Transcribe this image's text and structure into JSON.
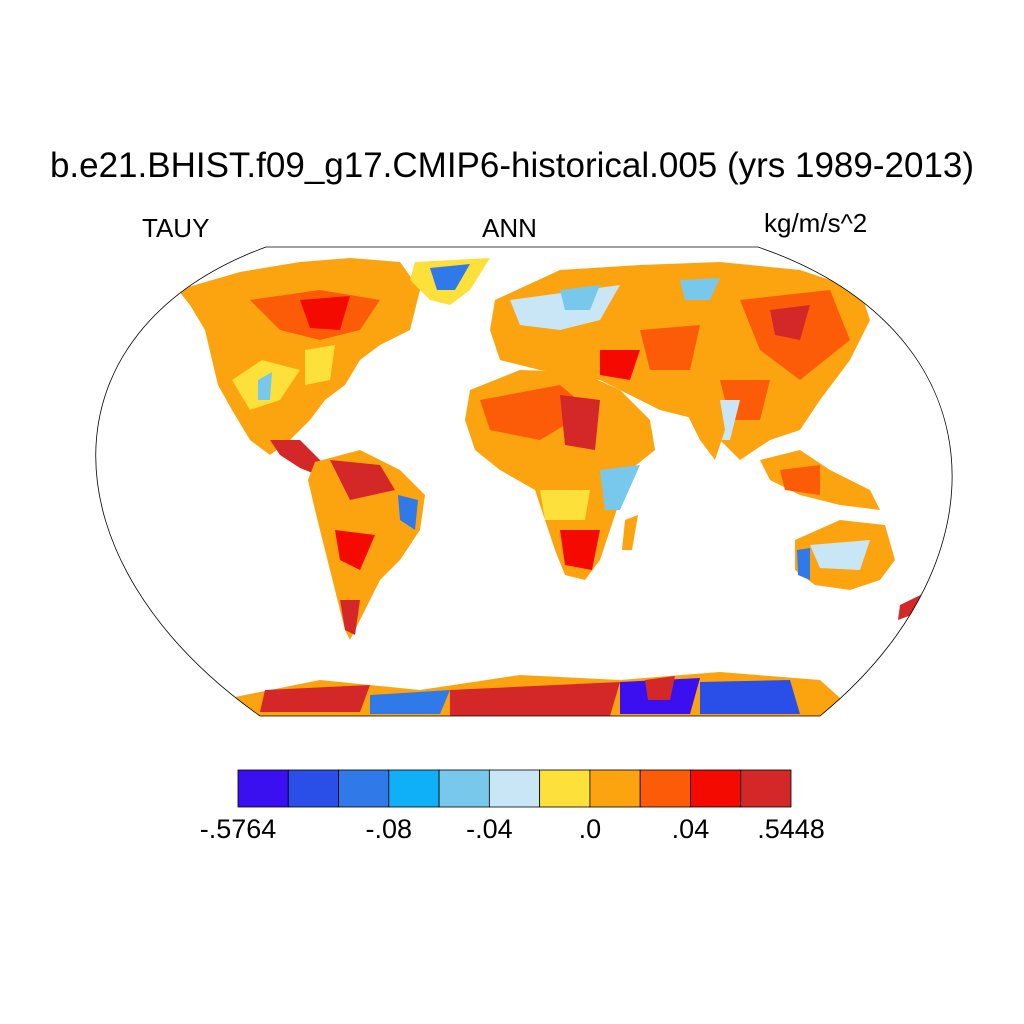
{
  "title": "b.e21.BHIST.f09_g17.CMIP6-historical.005 (yrs 1989-2013)",
  "left_label": "TAUY",
  "center_label": "ANN",
  "right_label": "kg/m/s^2",
  "colorbar": {
    "colors": [
      "#3a10f0",
      "#2a4ee8",
      "#2f7ae8",
      "#10b0f8",
      "#78c8ec",
      "#c8e6f6",
      "#fde03a",
      "#fca410",
      "#fc5c08",
      "#f50a00",
      "#d42828"
    ],
    "labels": [
      {
        "text": "-.5764",
        "boundary": 0
      },
      {
        "text": "-.08",
        "boundary": 3
      },
      {
        "text": "-.04",
        "boundary": 5
      },
      {
        "text": ".0",
        "boundary": 7
      },
      {
        "text": ".04",
        "boundary": 9
      },
      {
        "text": ".5448",
        "boundary": 11
      }
    ]
  }
}
